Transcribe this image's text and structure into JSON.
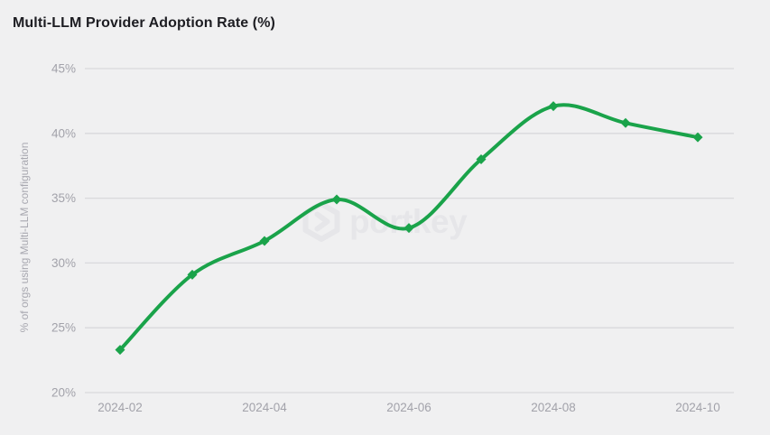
{
  "title": "Multi-LLM Provider Adoption Rate (%)",
  "watermark": {
    "text": "portkey"
  },
  "colors": {
    "background": "#f0f0f1",
    "line": "#1aa34a",
    "grid": "#d9d9dc",
    "tick_text": "#a2a2aa",
    "axis_title_text": "#a8a8b0",
    "title_text": "#1d1d22",
    "watermark": "#e6e6e9"
  },
  "chart_data": {
    "type": "line",
    "title": "Multi-LLM Provider Adoption Rate (%)",
    "xlabel": "",
    "ylabel": "% of orgs using Multi-LLM configuration",
    "categories": [
      "2024-02",
      "2024-03",
      "2024-04",
      "2024-05",
      "2024-06",
      "2024-07",
      "2024-08",
      "2024-09",
      "2024-10"
    ],
    "values": [
      23.3,
      29.1,
      31.7,
      34.9,
      32.7,
      38.0,
      42.1,
      40.8,
      39.7
    ],
    "ylim": [
      20,
      45
    ],
    "y_tick_step": 5,
    "y_tick_suffix": "%",
    "x_tick_every": 2,
    "grid": true,
    "legend": false,
    "marker": "diamond",
    "line_smooth": true
  }
}
